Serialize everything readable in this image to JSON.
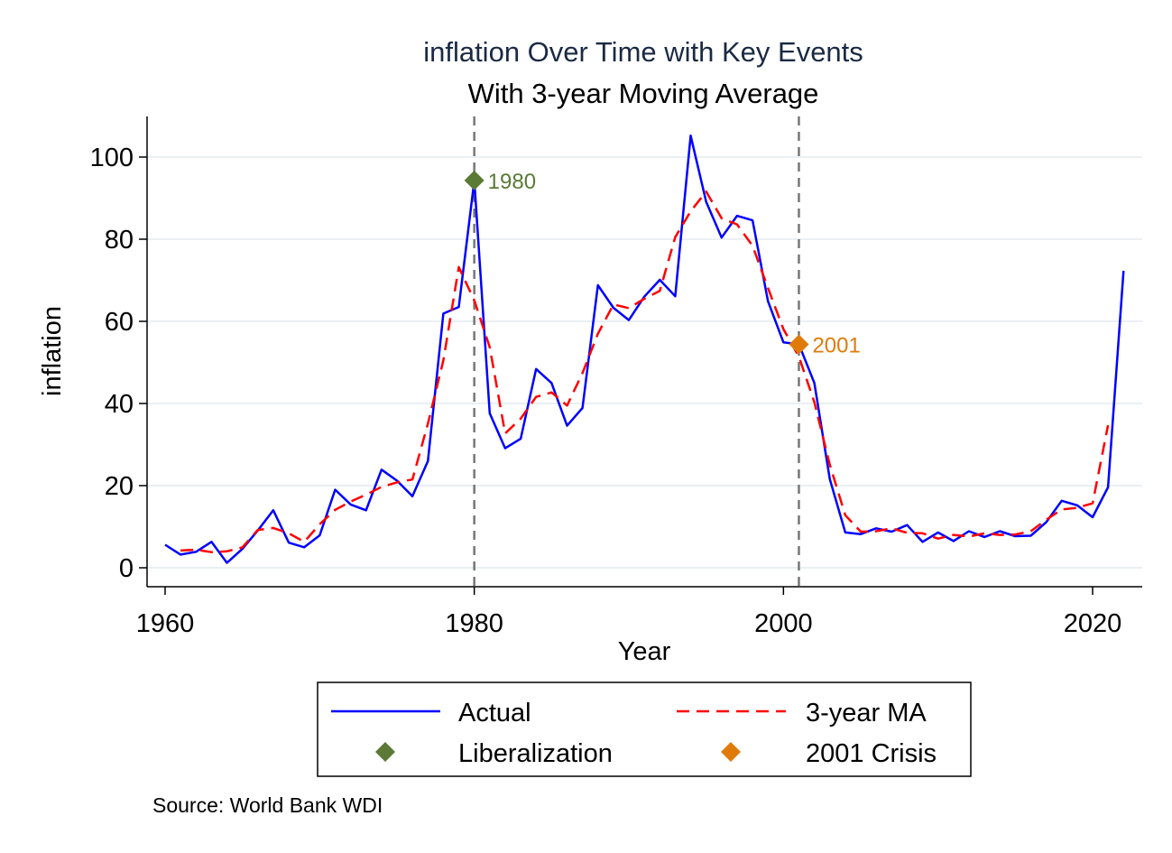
{
  "chart_data": {
    "type": "line",
    "title": "inflation Over Time with Key Events",
    "subtitle": "With 3-year Moving Average",
    "xlabel": "Year",
    "ylabel": "inflation",
    "xlim": [
      1959.5,
      2023
    ],
    "ylim": [
      -4.5,
      110
    ],
    "xticks": [
      1960,
      1980,
      2000,
      2020
    ],
    "yticks": [
      0,
      20,
      40,
      60,
      80,
      100
    ],
    "grid": "horizontal",
    "legend_position": "bottom",
    "source_note": "Source: World Bank WDI",
    "series": [
      {
        "name": "Actual",
        "color": "#0000ff",
        "style": "solid",
        "x": [
          1960,
          1961,
          1962,
          1963,
          1964,
          1965,
          1966,
          1967,
          1968,
          1969,
          1970,
          1971,
          1972,
          1973,
          1974,
          1975,
          1976,
          1977,
          1978,
          1979,
          1980,
          1981,
          1982,
          1983,
          1984,
          1985,
          1986,
          1987,
          1988,
          1989,
          1990,
          1991,
          1992,
          1993,
          1994,
          1995,
          1996,
          1997,
          1998,
          1999,
          2000,
          2001,
          2002,
          2003,
          2004,
          2005,
          2006,
          2007,
          2008,
          2009,
          2010,
          2011,
          2012,
          2013,
          2014,
          2015,
          2016,
          2017,
          2018,
          2019,
          2020,
          2021,
          2022
        ],
        "values": [
          5.6,
          3.2,
          3.9,
          6.3,
          1.2,
          4.6,
          9.1,
          14.0,
          6.1,
          5.0,
          7.9,
          19.0,
          15.4,
          14.0,
          23.9,
          21.2,
          17.4,
          26.0,
          61.9,
          63.5,
          94.3,
          37.6,
          29.1,
          31.4,
          48.4,
          45.0,
          34.6,
          38.9,
          68.8,
          63.3,
          60.3,
          66.0,
          70.1,
          66.1,
          105.2,
          89.1,
          80.4,
          85.7,
          84.6,
          64.9,
          54.9,
          54.4,
          45.0,
          21.6,
          8.6,
          8.2,
          9.6,
          8.8,
          10.4,
          6.3,
          8.6,
          6.5,
          8.9,
          7.5,
          8.9,
          7.7,
          7.8,
          11.1,
          16.3,
          15.2,
          12.3,
          19.6,
          72.3
        ]
      },
      {
        "name": "3-year MA",
        "color": "#ff0000",
        "style": "dashed",
        "x": [
          1961,
          1962,
          1963,
          1964,
          1965,
          1966,
          1967,
          1968,
          1969,
          1970,
          1971,
          1972,
          1973,
          1974,
          1975,
          1976,
          1977,
          1978,
          1979,
          1980,
          1981,
          1982,
          1983,
          1984,
          1985,
          1986,
          1987,
          1988,
          1989,
          1990,
          1991,
          1992,
          1993,
          1994,
          1995,
          1996,
          1997,
          1998,
          1999,
          2000,
          2001,
          2002,
          2003,
          2004,
          2005,
          2006,
          2007,
          2008,
          2009,
          2010,
          2011,
          2012,
          2013,
          2014,
          2015,
          2016,
          2017,
          2018,
          2019,
          2020,
          2021
        ],
        "values": [
          4.2,
          4.4,
          3.8,
          4.0,
          5.0,
          9.2,
          9.7,
          8.4,
          6.3,
          10.6,
          14.1,
          16.1,
          17.8,
          19.7,
          20.8,
          21.5,
          35.1,
          50.5,
          73.2,
          65.1,
          53.7,
          32.7,
          36.3,
          41.6,
          42.7,
          39.5,
          47.4,
          57.0,
          64.1,
          63.2,
          65.5,
          67.4,
          80.5,
          86.8,
          91.6,
          85.1,
          83.6,
          78.4,
          68.1,
          58.1,
          51.4,
          40.3,
          25.1,
          12.8,
          8.8,
          8.9,
          9.6,
          8.5,
          8.4,
          7.1,
          8.0,
          7.6,
          8.4,
          8.0,
          8.1,
          8.9,
          11.7,
          14.2,
          14.6,
          15.7,
          34.7
        ]
      }
    ],
    "events": [
      {
        "name": "Liberalization",
        "x": 1980,
        "y": 94.3,
        "label": "1980",
        "color": "#5a7a35"
      },
      {
        "name": "2001 Crisis",
        "x": 2001,
        "y": 54.4,
        "label": "2001",
        "color": "#e07b0a"
      }
    ],
    "legend": [
      {
        "label": "Actual",
        "kind": "solid-line",
        "color": "#0000ff"
      },
      {
        "label": "3-year MA",
        "kind": "dashed-line",
        "color": "#ff0000"
      },
      {
        "label": "Liberalization",
        "kind": "diamond",
        "color": "#5a7a35"
      },
      {
        "label": "2001 Crisis",
        "kind": "diamond",
        "color": "#e07b0a"
      }
    ]
  }
}
